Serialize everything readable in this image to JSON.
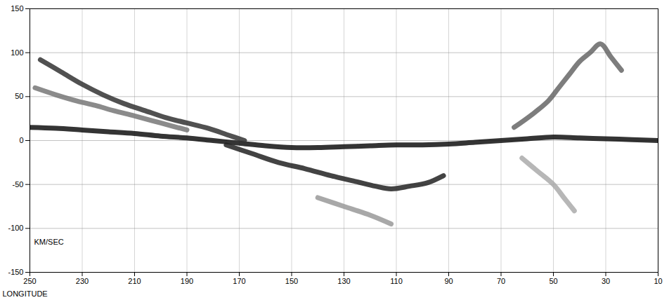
{
  "chart_data": {
    "type": "line",
    "xlabel": "LONGITUDE",
    "ylabel": "KM/SEC",
    "xlim": [
      250,
      10
    ],
    "xticks": [
      250,
      230,
      210,
      190,
      170,
      150,
      130,
      110,
      90,
      70,
      50,
      30,
      10
    ],
    "ylim": [
      -150,
      150
    ],
    "yticks": [
      -150,
      -100,
      -50,
      0,
      50,
      100,
      150
    ],
    "grid": true,
    "series": [
      {
        "color": "#111111",
        "x": [
          250,
          240,
          230,
          220,
          210,
          200,
          190,
          180,
          170,
          160,
          150,
          140,
          130,
          120,
          110,
          100,
          90,
          80,
          70,
          60,
          50,
          40,
          30,
          20,
          10
        ],
        "values": [
          15,
          14,
          12,
          10,
          8,
          5,
          3,
          0,
          -3,
          -6,
          -8,
          -8,
          -7,
          -6,
          -5,
          -5,
          -4,
          -2,
          0,
          2,
          4,
          3,
          2,
          1,
          0
        ]
      },
      {
        "color": "#333333",
        "x": [
          246,
          238,
          230,
          222,
          214,
          206,
          198,
          190,
          182,
          174,
          168
        ],
        "values": [
          92,
          78,
          64,
          52,
          42,
          34,
          26,
          20,
          14,
          6,
          0
        ]
      },
      {
        "color": "#777777",
        "x": [
          248,
          240,
          232,
          225,
          218,
          210,
          200,
          190
        ],
        "values": [
          60,
          52,
          45,
          40,
          34,
          28,
          20,
          12
        ]
      },
      {
        "color": "#222222",
        "x": [
          175,
          165,
          155,
          145,
          135,
          125,
          118,
          112,
          105,
          98,
          92
        ],
        "values": [
          -5,
          -15,
          -25,
          -32,
          -40,
          -47,
          -52,
          -55,
          -52,
          -48,
          -40
        ]
      },
      {
        "color": "#999999",
        "x": [
          140,
          130,
          120,
          112
        ],
        "values": [
          -65,
          -75,
          -85,
          -95
        ]
      },
      {
        "color": "#666666",
        "x": [
          65,
          58,
          52,
          48,
          44,
          40,
          36,
          32,
          28,
          24
        ],
        "values": [
          15,
          30,
          45,
          60,
          75,
          90,
          100,
          110,
          95,
          80
        ]
      },
      {
        "color": "#aaaaaa",
        "x": [
          62,
          56,
          50,
          46,
          42
        ],
        "values": [
          -20,
          -35,
          -50,
          -65,
          -80
        ]
      }
    ]
  }
}
